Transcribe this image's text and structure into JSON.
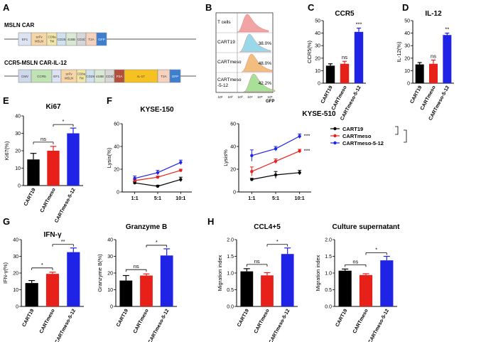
{
  "panels": {
    "A": "A",
    "B": "B",
    "C": "C",
    "D": "D",
    "E": "E",
    "F": "F",
    "G": "G",
    "H": "H"
  },
  "colors": {
    "cart19": "#000000",
    "cartmeso": "#e8201a",
    "cartmeso512": "#1f23e6"
  },
  "panel_a": {
    "title1": "MSLN CAR",
    "title2": "CCR5-MSLN CAR-IL-12",
    "construct1": [
      "EF1",
      "scFv MSLN",
      "CD8a TM",
      "CD28",
      "41BB",
      "CD3ζ",
      "T2A",
      "GFP"
    ],
    "construct2": [
      "CMV",
      "CCR5",
      "EF1",
      "scFv MSLN",
      "CD8a TM",
      "CD28",
      "41BB",
      "CD3ζ",
      "P2A",
      "IL-17",
      "T2A",
      "GFP"
    ]
  },
  "panel_b": {
    "rows": [
      {
        "label": "T cells",
        "pct": ""
      },
      {
        "label": "CART19",
        "pct": "38.0%"
      },
      {
        "label": "CARTmeso",
        "pct": "48.0%"
      },
      {
        "label": "CARTmeso -5-12",
        "pct": "42.2%"
      }
    ],
    "xticks": [
      "10¹",
      "10²",
      "10³",
      "10⁴",
      "10⁵",
      "10⁶"
    ],
    "xlabel": "GFP"
  },
  "chart_data": [
    {
      "id": "C",
      "type": "bar",
      "title": "CCR5",
      "ylabel": "CCR5(%)",
      "categories": [
        "CART19",
        "CARTmeso",
        "CARTmeso-5-12"
      ],
      "values": [
        14,
        15.5,
        41
      ],
      "errors": [
        1.5,
        2,
        3
      ],
      "ylim": [
        0,
        50
      ],
      "yticks": [
        0,
        10,
        20,
        30,
        40,
        50
      ],
      "annotations": [
        "ns",
        "***"
      ]
    },
    {
      "id": "D",
      "type": "bar",
      "title": "IL-12",
      "ylabel": "IL-12(%)",
      "categories": [
        "CART19",
        "CARTmeso",
        "CARTmeso-5-12"
      ],
      "values": [
        15,
        15.5,
        38.5
      ],
      "errors": [
        1.5,
        3,
        1.5
      ],
      "ylim": [
        0,
        50
      ],
      "yticks": [
        0,
        10,
        20,
        30,
        40,
        50
      ],
      "annotations": [
        "ns",
        "**"
      ]
    },
    {
      "id": "E",
      "type": "bar",
      "title": "Ki67",
      "ylabel": "Ki67(%)",
      "categories": [
        "CART19",
        "CARTmeso",
        "CARTmeso-5-12"
      ],
      "values": [
        15,
        20,
        30
      ],
      "errors": [
        3.5,
        2.5,
        3
      ],
      "ylim": [
        0,
        40
      ],
      "yticks": [
        0,
        10,
        20,
        30,
        40
      ],
      "annotations": [
        "ns",
        "*"
      ]
    },
    {
      "id": "F1",
      "type": "line",
      "title": "KYSE-150",
      "ylabel": "Lysis(%)",
      "categories": [
        "1:1",
        "5:1",
        "10:1"
      ],
      "ylim": [
        0,
        60
      ],
      "yticks": [
        0,
        20,
        40,
        60
      ],
      "series": [
        {
          "name": "CART19",
          "values": [
            8,
            5,
            11
          ],
          "errors": [
            1,
            1,
            2
          ]
        },
        {
          "name": "CARTmeso",
          "values": [
            10,
            13,
            19
          ],
          "errors": [
            1,
            1,
            1
          ]
        },
        {
          "name": "CARTmeso-5-12",
          "values": [
            12,
            17,
            26
          ],
          "errors": [
            2,
            2,
            2
          ]
        }
      ]
    },
    {
      "id": "F2",
      "type": "line",
      "title": "KYSE-510",
      "ylabel": "Lysis%",
      "categories": [
        "1:1",
        "5:1",
        "10:1"
      ],
      "ylim": [
        0,
        60
      ],
      "yticks": [
        0,
        20,
        40,
        60
      ],
      "series": [
        {
          "name": "CART19",
          "values": [
            11,
            15,
            17
          ],
          "errors": [
            1,
            3,
            2
          ]
        },
        {
          "name": "CARTmeso",
          "values": [
            18,
            27,
            36
          ],
          "errors": [
            4,
            2,
            1.5
          ]
        },
        {
          "name": "CARTmeso-5-12",
          "values": [
            32,
            38,
            49
          ],
          "errors": [
            5,
            2,
            2
          ]
        }
      ],
      "annotations": [
        "***",
        "***"
      ]
    },
    {
      "id": "G1",
      "type": "bar",
      "title": "IFN-γ",
      "ylabel": "IFN-γ(%)",
      "categories": [
        "CART19",
        "CARTmeso",
        "CARTmeso-5-12"
      ],
      "values": [
        14,
        19.5,
        32.5
      ],
      "errors": [
        1.5,
        1,
        2.5
      ],
      "ylim": [
        0,
        40
      ],
      "yticks": [
        0,
        10,
        20,
        30,
        40
      ],
      "annotations": [
        "*",
        "**"
      ]
    },
    {
      "id": "G2",
      "type": "bar",
      "title": "Granzyme B",
      "ylabel": "Granzyme B(%)",
      "categories": [
        "CART19",
        "CARTmeso",
        "CARTmeso-5-12"
      ],
      "values": [
        15.5,
        18.5,
        30.5
      ],
      "errors": [
        3,
        1,
        4
      ],
      "ylim": [
        0,
        40
      ],
      "yticks": [
        0,
        10,
        20,
        30,
        40
      ],
      "annotations": [
        "ns",
        "*"
      ]
    },
    {
      "id": "H1",
      "type": "bar",
      "title": "CCL4+5",
      "ylabel": "Migration index",
      "categories": [
        "CART19",
        "CARTmeso",
        "CARTmeso-5-12"
      ],
      "values": [
        1.05,
        0.93,
        1.57
      ],
      "errors": [
        0.08,
        0.08,
        0.18
      ],
      "ylim": [
        0,
        2.0
      ],
      "yticks": [
        "0.0",
        "0.5",
        "1.0",
        "1.5",
        "2.0"
      ],
      "annotations": [
        "ns",
        "*"
      ]
    },
    {
      "id": "H2",
      "type": "bar",
      "title": "Culture supernatant",
      "ylabel": "Migration index",
      "categories": [
        "CART19",
        "CARTmeso",
        "CARTmeso-5-12"
      ],
      "values": [
        1.07,
        0.94,
        1.38
      ],
      "errors": [
        0.05,
        0.04,
        0.12
      ],
      "ylim": [
        0,
        2.0
      ],
      "yticks": [
        "0.0",
        "0.5",
        "1.0",
        "1.5",
        "2.0"
      ],
      "annotations": [
        "ns",
        "*"
      ]
    }
  ],
  "legend": [
    "CART19",
    "CARTmeso",
    "CARTmeso-5-12"
  ]
}
